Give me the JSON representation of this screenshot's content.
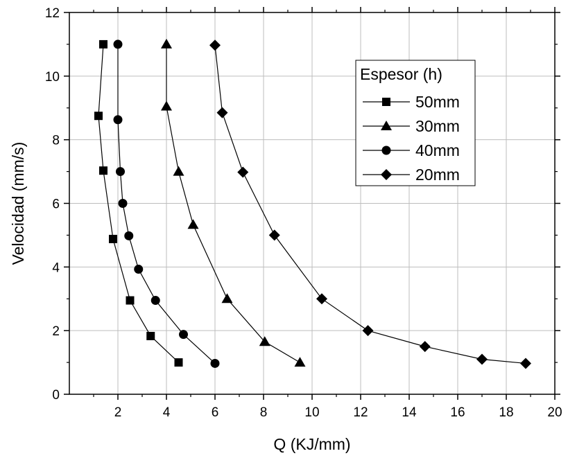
{
  "chart_data": {
    "type": "line",
    "title": "",
    "xlabel": "Q (KJ/mm)",
    "ylabel": "Velocidad (mm/s)",
    "xlim": [
      0,
      20
    ],
    "ylim": [
      0,
      12
    ],
    "x_ticks": [
      2,
      4,
      6,
      8,
      10,
      12,
      14,
      16,
      18,
      20
    ],
    "y_ticks": [
      0,
      2,
      4,
      6,
      8,
      10,
      12
    ],
    "grid": true,
    "legend": {
      "title": "Espesor (h)",
      "placement": "top-right"
    },
    "series": [
      {
        "name": "50mm",
        "marker": "square",
        "x": [
          1.4,
          1.2,
          1.4,
          1.8,
          2.5,
          3.35,
          4.5
        ],
        "y": [
          11.0,
          8.75,
          7.03,
          4.88,
          2.95,
          1.83,
          1.0
        ]
      },
      {
        "name": "30mm",
        "marker": "triangle",
        "x": [
          4.0,
          4.0,
          4.5,
          5.1,
          6.5,
          8.05,
          9.5
        ],
        "y": [
          11.0,
          9.05,
          7.0,
          5.33,
          3.0,
          1.65,
          1.0
        ]
      },
      {
        "name": "40mm",
        "marker": "circle",
        "x": [
          2.0,
          2.0,
          2.1,
          2.2,
          2.45,
          2.85,
          3.55,
          4.7,
          6.0
        ],
        "y": [
          11.0,
          8.63,
          7.0,
          6.0,
          4.98,
          3.93,
          2.95,
          1.88,
          0.97
        ]
      },
      {
        "name": "20mm",
        "marker": "diamond",
        "x": [
          6.0,
          6.3,
          7.15,
          8.45,
          10.4,
          12.3,
          14.65,
          17.0,
          18.8
        ],
        "y": [
          10.97,
          8.85,
          6.98,
          5.0,
          3.0,
          2.0,
          1.5,
          1.1,
          0.97
        ]
      }
    ]
  }
}
